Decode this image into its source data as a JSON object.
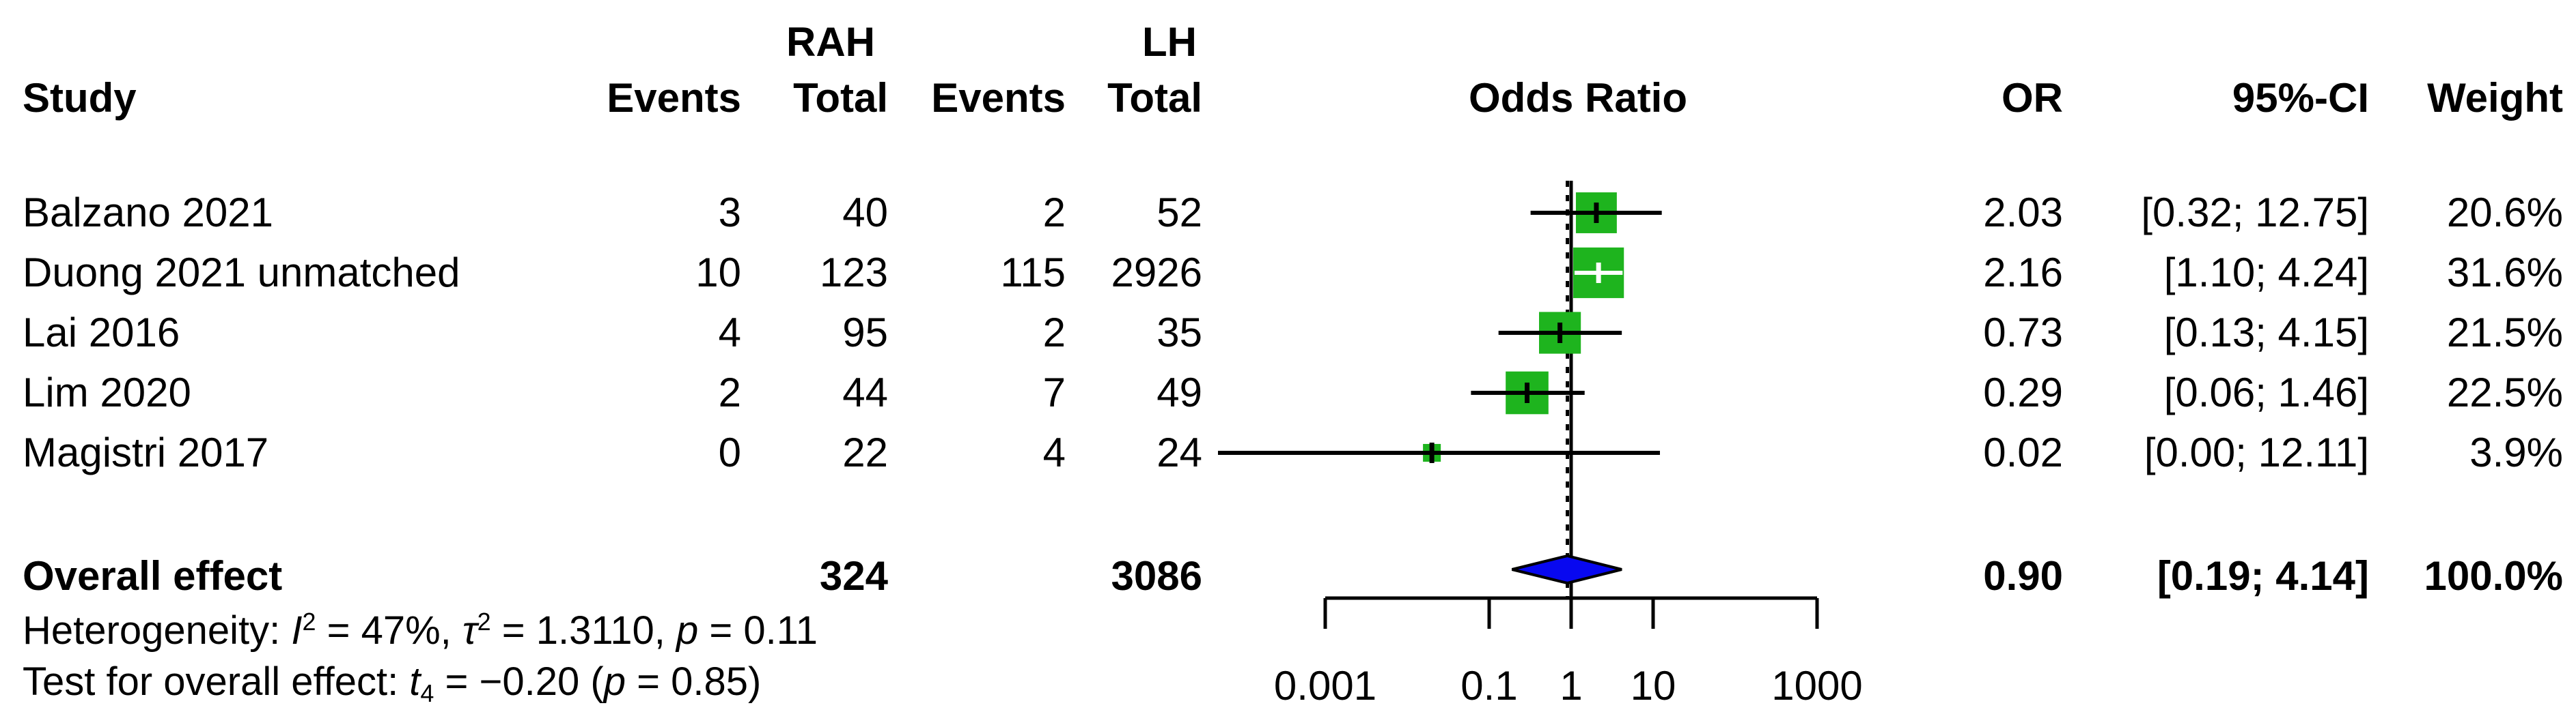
{
  "header": {
    "study": "Study",
    "group1": "RAH",
    "group2": "LH",
    "events1": "Events",
    "total1": "Total",
    "events2": "Events",
    "total2": "Total",
    "plot_title": "Odds Ratio",
    "or": "OR",
    "ci": "95%-CI",
    "weight": "Weight"
  },
  "rows": [
    {
      "study": "Balzano 2021",
      "e1": "3",
      "t1": "40",
      "e2": "2",
      "t2": "52",
      "or": "2.03",
      "ci": "[0.32; 12.75]",
      "weight": "20.6%"
    },
    {
      "study": "Duong 2021 unmatched",
      "e1": "10",
      "t1": "123",
      "e2": "115",
      "t2": "2926",
      "or": "2.16",
      "ci": "[1.10; 4.24]",
      "weight": "31.6%"
    },
    {
      "study": "Lai 2016",
      "e1": "4",
      "t1": "95",
      "e2": "2",
      "t2": "35",
      "or": "0.73",
      "ci": "[0.13; 4.15]",
      "weight": "21.5%"
    },
    {
      "study": "Lim 2020",
      "e1": "2",
      "t1": "44",
      "e2": "7",
      "t2": "49",
      "or": "0.29",
      "ci": "[0.06; 1.46]",
      "weight": "22.5%"
    },
    {
      "study": "Magistri 2017",
      "e1": "0",
      "t1": "22",
      "e2": "4",
      "t2": "24",
      "or": "0.02",
      "ci": "[0.00; 12.11]",
      "weight": "3.9%"
    }
  ],
  "overall_row": {
    "label": "Overall effect",
    "t1": "324",
    "t2": "3086",
    "or": "0.90",
    "ci": "[0.19; 4.14]",
    "weight": "100.0%"
  },
  "footnotes": {
    "het": {
      "prefix": "Heterogeneity: ",
      "i_sym": "I",
      "i_sup": "2",
      "seg1": " = 47%, ",
      "tau_sym": "τ",
      "tau_sup": "2",
      "seg2": " = 1.3110, ",
      "p_sym": "p",
      "seg3": " = 0.11"
    },
    "test": {
      "prefix": "Test for overall effect: ",
      "t_sym": "t",
      "t_sub": "4",
      "seg1": " = −0.20 (",
      "p_sym": "p",
      "seg2": " = 0.85)"
    }
  },
  "chart_data": {
    "type": "forest",
    "x_scale": "log",
    "xlabel": "",
    "x_ticks": [
      {
        "value": 0.001,
        "label": "0.001"
      },
      {
        "value": 0.1,
        "label": "0.1"
      },
      {
        "value": 1,
        "label": "1"
      },
      {
        "value": 10,
        "label": "10"
      },
      {
        "value": 1000,
        "label": "1000"
      }
    ],
    "null_value": 1,
    "studies": [
      {
        "name": "Balzano 2021",
        "or": 2.03,
        "ci_low": 0.32,
        "ci_high": 12.75,
        "weight_pct": 20.6
      },
      {
        "name": "Duong 2021 unmatched",
        "or": 2.16,
        "ci_low": 1.1,
        "ci_high": 4.24,
        "weight_pct": 31.6
      },
      {
        "name": "Lai 2016",
        "or": 0.73,
        "ci_low": 0.13,
        "ci_high": 4.15,
        "weight_pct": 21.5
      },
      {
        "name": "Lim 2020",
        "or": 0.29,
        "ci_low": 0.06,
        "ci_high": 1.46,
        "weight_pct": 22.5
      },
      {
        "name": "Magistri 2017",
        "or": 0.02,
        "ci_low": 0.0,
        "ci_high": 12.11,
        "weight_pct": 3.9
      }
    ],
    "overall": {
      "name": "Overall effect",
      "or": 0.9,
      "ci_low": 0.19,
      "ci_high": 4.14,
      "weight_pct": 100.0
    },
    "colors": {
      "square": "#1eb41e",
      "diamond": "#0808f0",
      "line": "#000000"
    }
  }
}
